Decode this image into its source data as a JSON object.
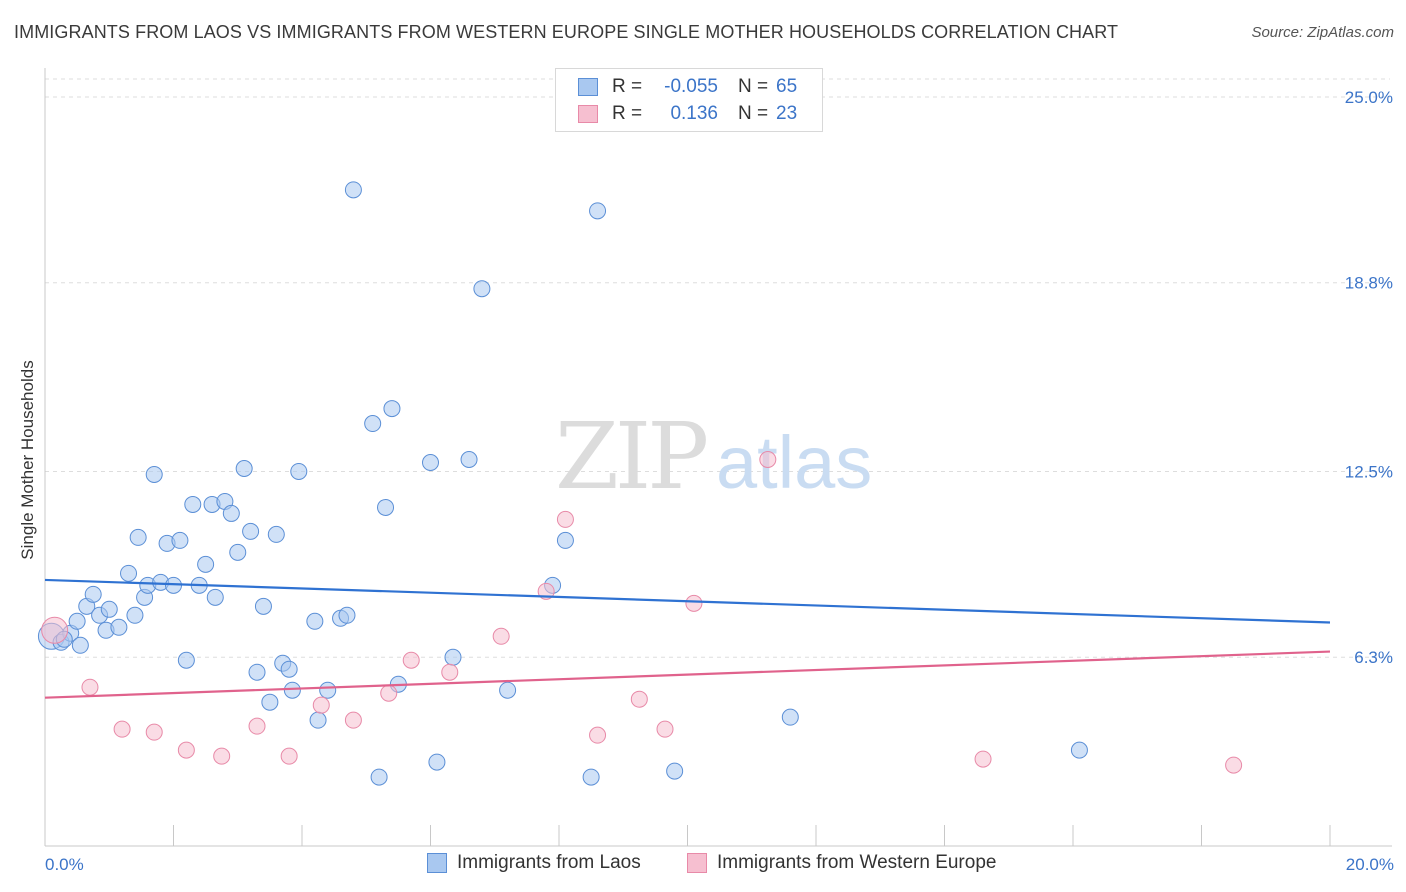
{
  "header": {
    "title": "IMMIGRANTS FROM LAOS VS IMMIGRANTS FROM WESTERN EUROPE SINGLE MOTHER HOUSEHOLDS CORRELATION CHART",
    "source": "Source: ZipAtlas.com"
  },
  "watermark": {
    "zip": "ZIP",
    "atlas": "atlas"
  },
  "legend": {
    "rows": [
      {
        "r_label": "R =",
        "r_value": "-0.055",
        "n_label": "N =",
        "n_value": "65"
      },
      {
        "r_label": "R =",
        "r_value": "0.136",
        "n_label": "N =",
        "n_value": "23"
      }
    ]
  },
  "colors": {
    "blue_fill": "#a9c8f0",
    "blue_stroke": "#5b8fd6",
    "blue_line": "#2f72d2",
    "pink_fill": "#f6bfd0",
    "pink_stroke": "#e88aa8",
    "pink_line": "#e0628c",
    "tick_text": "#3b74c8",
    "grid": "#dddddd"
  },
  "chart_data": {
    "type": "scatter",
    "title": "IMMIGRANTS FROM LAOS VS IMMIGRANTS FROM WESTERN EUROPE SINGLE MOTHER HOUSEHOLDS CORRELATION CHART",
    "xlabel": "",
    "ylabel": "Single Mother Households",
    "xlim": [
      0,
      20
    ],
    "ylim": [
      0,
      25.6
    ],
    "x_tick_labels": [
      "0.0%",
      "20.0%"
    ],
    "y_ticks": [
      6.3,
      12.5,
      18.8,
      25.0
    ],
    "y_tick_labels": [
      "6.3%",
      "12.5%",
      "18.8%",
      "25.0%"
    ],
    "grid": "horizontal dashed",
    "legend_placement": "top-center",
    "series": [
      {
        "name": "Immigrants from Laos",
        "color": "blue",
        "r": -0.055,
        "n": 65,
        "trend": {
          "x": [
            0,
            20
          ],
          "y": [
            8.88,
            7.46
          ]
        },
        "points": [
          {
            "x": 0.1,
            "y": 7.0,
            "big": true
          },
          {
            "x": 0.25,
            "y": 6.8
          },
          {
            "x": 0.4,
            "y": 7.1
          },
          {
            "x": 0.5,
            "y": 7.5
          },
          {
            "x": 0.65,
            "y": 8.0
          },
          {
            "x": 0.75,
            "y": 8.4
          },
          {
            "x": 0.85,
            "y": 7.7
          },
          {
            "x": 0.95,
            "y": 7.2
          },
          {
            "x": 1.0,
            "y": 7.9
          },
          {
            "x": 1.15,
            "y": 7.3
          },
          {
            "x": 1.3,
            "y": 9.1
          },
          {
            "x": 1.4,
            "y": 7.7
          },
          {
            "x": 1.45,
            "y": 10.3
          },
          {
            "x": 1.55,
            "y": 8.3
          },
          {
            "x": 1.6,
            "y": 8.7
          },
          {
            "x": 1.7,
            "y": 12.4
          },
          {
            "x": 1.8,
            "y": 8.8
          },
          {
            "x": 1.9,
            "y": 10.1
          },
          {
            "x": 2.0,
            "y": 8.7
          },
          {
            "x": 2.1,
            "y": 10.2
          },
          {
            "x": 2.2,
            "y": 6.2
          },
          {
            "x": 2.3,
            "y": 11.4
          },
          {
            "x": 2.4,
            "y": 8.7
          },
          {
            "x": 2.5,
            "y": 9.4
          },
          {
            "x": 2.6,
            "y": 11.4
          },
          {
            "x": 2.65,
            "y": 8.3
          },
          {
            "x": 2.8,
            "y": 11.5
          },
          {
            "x": 2.9,
            "y": 11.1
          },
          {
            "x": 3.0,
            "y": 9.8
          },
          {
            "x": 3.1,
            "y": 12.6
          },
          {
            "x": 3.2,
            "y": 10.5
          },
          {
            "x": 3.3,
            "y": 5.8
          },
          {
            "x": 3.4,
            "y": 8.0
          },
          {
            "x": 3.5,
            "y": 4.8
          },
          {
            "x": 3.6,
            "y": 10.4
          },
          {
            "x": 3.7,
            "y": 6.1
          },
          {
            "x": 3.8,
            "y": 5.9
          },
          {
            "x": 3.85,
            "y": 5.2
          },
          {
            "x": 3.95,
            "y": 12.5
          },
          {
            "x": 4.2,
            "y": 7.5
          },
          {
            "x": 4.25,
            "y": 4.2
          },
          {
            "x": 4.4,
            "y": 5.2
          },
          {
            "x": 4.6,
            "y": 7.6
          },
          {
            "x": 4.7,
            "y": 7.7
          },
          {
            "x": 4.8,
            "y": 21.9
          },
          {
            "x": 5.1,
            "y": 14.1
          },
          {
            "x": 5.2,
            "y": 2.3
          },
          {
            "x": 5.3,
            "y": 11.3
          },
          {
            "x": 5.4,
            "y": 14.6
          },
          {
            "x": 5.5,
            "y": 5.4
          },
          {
            "x": 6.0,
            "y": 12.8
          },
          {
            "x": 6.1,
            "y": 2.8
          },
          {
            "x": 6.35,
            "y": 6.3
          },
          {
            "x": 6.6,
            "y": 12.9
          },
          {
            "x": 6.8,
            "y": 18.6
          },
          {
            "x": 7.2,
            "y": 5.2
          },
          {
            "x": 7.9,
            "y": 8.7
          },
          {
            "x": 8.1,
            "y": 10.2
          },
          {
            "x": 8.5,
            "y": 2.3
          },
          {
            "x": 8.6,
            "y": 21.2
          },
          {
            "x": 9.8,
            "y": 2.5
          },
          {
            "x": 11.6,
            "y": 4.3
          },
          {
            "x": 16.1,
            "y": 3.2
          },
          {
            "x": 0.3,
            "y": 6.9
          },
          {
            "x": 0.55,
            "y": 6.7
          }
        ]
      },
      {
        "name": "Immigrants from Western Europe",
        "color": "pink",
        "r": 0.136,
        "n": 23,
        "trend": {
          "x": [
            0,
            20
          ],
          "y": [
            4.95,
            6.49
          ]
        },
        "points": [
          {
            "x": 0.15,
            "y": 7.2,
            "big": true
          },
          {
            "x": 0.7,
            "y": 5.3
          },
          {
            "x": 1.2,
            "y": 3.9
          },
          {
            "x": 1.7,
            "y": 3.8
          },
          {
            "x": 2.2,
            "y": 3.2
          },
          {
            "x": 2.75,
            "y": 3.0
          },
          {
            "x": 3.3,
            "y": 4.0
          },
          {
            "x": 3.8,
            "y": 3.0
          },
          {
            "x": 4.3,
            "y": 4.7
          },
          {
            "x": 4.8,
            "y": 4.2
          },
          {
            "x": 5.35,
            "y": 5.1
          },
          {
            "x": 5.7,
            "y": 6.2
          },
          {
            "x": 6.3,
            "y": 5.8
          },
          {
            "x": 7.1,
            "y": 7.0
          },
          {
            "x": 7.8,
            "y": 8.5
          },
          {
            "x": 8.1,
            "y": 10.9
          },
          {
            "x": 8.6,
            "y": 3.7
          },
          {
            "x": 9.25,
            "y": 4.9
          },
          {
            "x": 9.65,
            "y": 3.9
          },
          {
            "x": 10.1,
            "y": 8.1
          },
          {
            "x": 11.25,
            "y": 12.9
          },
          {
            "x": 14.6,
            "y": 2.9
          },
          {
            "x": 18.5,
            "y": 2.7
          }
        ]
      }
    ]
  },
  "bottom_legend": {
    "items": [
      {
        "label": "Immigrants from Laos"
      },
      {
        "label": "Immigrants from Western Europe"
      }
    ]
  }
}
